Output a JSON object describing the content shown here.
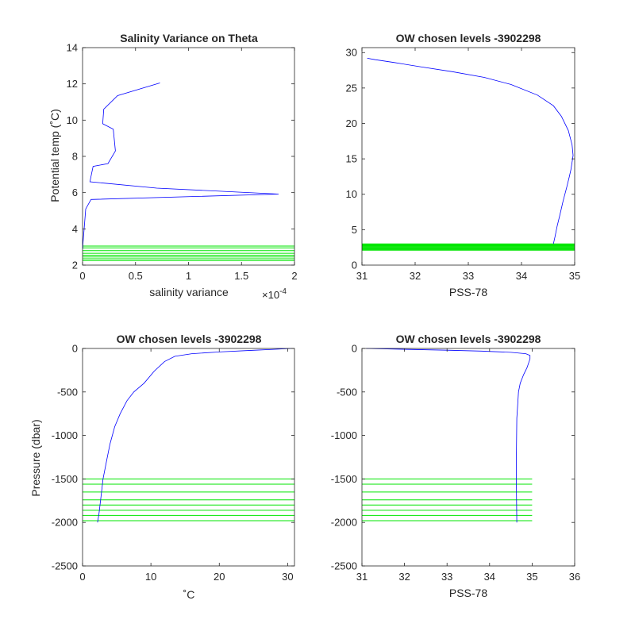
{
  "chart_data": [
    {
      "type": "line",
      "title": "Salinity Variance on Theta",
      "xlabel": "salinity variance",
      "ylabel": "Potential temp (˚C)",
      "x_exponent_label": "×10",
      "x_exponent_power": "-4",
      "xlim": [
        0,
        0.0002
      ],
      "ylim": [
        2,
        14
      ],
      "xticks": [
        0,
        0.5,
        1,
        1.5,
        2
      ],
      "yticks": [
        2,
        4,
        6,
        8,
        10,
        12,
        14
      ],
      "x_tick_scale": 0.0001,
      "series": [
        {
          "color": "#0000ff",
          "x": [
            7.3e-05,
            3.3e-05,
            2e-05,
            1.9e-05,
            2.9e-05,
            3.1e-05,
            2.4e-05,
            1e-05,
            8e-06,
            7e-06,
            7e-05,
            0.000185,
            8e-06,
            3e-06,
            1.5e-06,
            5e-07,
            3e-07,
            2e-07
          ],
          "y": [
            12.05,
            11.35,
            10.6,
            9.8,
            9.5,
            8.3,
            7.6,
            7.45,
            6.9,
            6.6,
            6.25,
            5.92,
            5.62,
            5.1,
            4.0,
            3.3,
            3.1,
            2.9
          ]
        }
      ],
      "level_lines": {
        "color": "#00e600",
        "y": [
          2.25,
          2.35,
          2.45,
          2.55,
          2.65,
          2.8,
          2.95,
          3.05
        ],
        "x_extent": [
          0,
          0.0002
        ]
      }
    },
    {
      "type": "line",
      "title": "OW chosen levels -3902298",
      "xlabel": "PSS-78",
      "ylabel": "",
      "xlim": [
        31,
        35
      ],
      "ylim": [
        0,
        30.7
      ],
      "xticks": [
        31,
        32,
        33,
        34,
        35
      ],
      "yticks": [
        0,
        5,
        10,
        15,
        20,
        25,
        30
      ],
      "series": [
        {
          "color": "#0000ff",
          "description_free": true,
          "x": [
            34.6,
            34.63,
            34.67,
            34.72,
            34.78,
            34.85,
            34.9,
            34.93,
            34.95,
            34.97,
            34.95,
            34.88,
            34.75,
            34.6,
            34.3,
            33.8,
            33.3,
            32.7,
            32.1,
            31.6,
            31.25,
            31.1
          ],
          "y": [
            3.0,
            4.0,
            5.5,
            7.0,
            9.0,
            11.0,
            12.5,
            13.5,
            14.5,
            15.5,
            17.0,
            19.0,
            21.0,
            22.5,
            24.0,
            25.5,
            26.5,
            27.3,
            28.0,
            28.6,
            29.0,
            29.2
          ]
        }
      ],
      "level_lines": {
        "color": "#00e600",
        "y": [
          2.1,
          2.2,
          2.3,
          2.4,
          2.5,
          2.6,
          2.7,
          2.8,
          2.9,
          3.0
        ],
        "x_extent": [
          31,
          35
        ]
      }
    },
    {
      "type": "line",
      "title": "OW chosen levels -3902298",
      "xlabel": "˚C",
      "ylabel": "Pressure (dbar)",
      "xlim": [
        0,
        31
      ],
      "ylim": [
        -2500,
        0
      ],
      "xticks": [
        0,
        10,
        20,
        30
      ],
      "yticks": [
        -2500,
        -2000,
        -1500,
        -1000,
        -500,
        0
      ],
      "series": [
        {
          "color": "#0000ff",
          "x": [
            30.5,
            28,
            24,
            20,
            16,
            13.5,
            12,
            10.5,
            9,
            7.5,
            6.5,
            5.5,
            4.7,
            4.0,
            3.5,
            3.0,
            2.7,
            2.4,
            2.2
          ],
          "y": [
            0,
            -10,
            -25,
            -40,
            -60,
            -90,
            -150,
            -260,
            -400,
            -500,
            -600,
            -750,
            -900,
            -1100,
            -1300,
            -1500,
            -1700,
            -1900,
            -2000
          ]
        }
      ],
      "level_lines": {
        "color": "#00e600",
        "y": [
          -1500,
          -1560,
          -1650,
          -1740,
          -1800,
          -1860,
          -1920,
          -1980
        ],
        "x_extent": [
          0,
          31
        ]
      }
    },
    {
      "type": "line",
      "title": "OW chosen levels -3902298",
      "xlabel": "PSS-78",
      "ylabel": "",
      "xlim": [
        31,
        36
      ],
      "ylim": [
        -2500,
        0
      ],
      "xticks": [
        31,
        32,
        33,
        34,
        35,
        36
      ],
      "yticks": [
        -2500,
        -2000,
        -1500,
        -1000,
        -500,
        0
      ],
      "series": [
        {
          "color": "#0000ff",
          "x": [
            31.1,
            31.5,
            32.2,
            33.0,
            33.8,
            34.5,
            34.85,
            34.95,
            34.95,
            34.88,
            34.8,
            34.72,
            34.68,
            34.66,
            34.64,
            34.63,
            34.63,
            34.64
          ],
          "y": [
            0,
            -5,
            -12,
            -20,
            -30,
            -45,
            -60,
            -80,
            -120,
            -220,
            -300,
            -400,
            -500,
            -650,
            -800,
            -1200,
            -1600,
            -2000
          ]
        }
      ],
      "level_lines": {
        "color": "#00e600",
        "y": [
          -1500,
          -1560,
          -1650,
          -1740,
          -1800,
          -1860,
          -1920,
          -1980
        ],
        "x_extent": [
          31,
          35
        ]
      }
    }
  ]
}
